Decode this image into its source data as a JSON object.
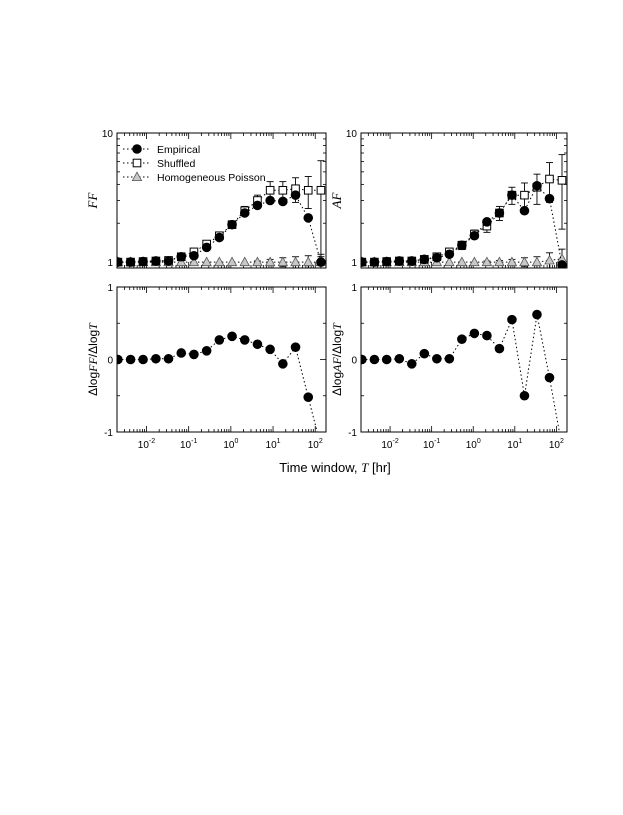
{
  "figure": {
    "xlabel_prefix": "Time window, ",
    "xlabel_var": "T",
    "xlabel_unit": " [hr]"
  },
  "colors": {
    "empirical": "#000000",
    "shuffled": "#ffffff",
    "poisson": "#c8c8c8",
    "axis": "#000000"
  },
  "chart_data": [
    {
      "id": "ff",
      "type": "scatter",
      "xscale": "log",
      "yscale": "log",
      "ylabel": "FF",
      "xlim": [
        0.002,
        180
      ],
      "ylim": [
        0.9,
        10
      ],
      "yticks": [
        {
          "v": 1,
          "label": "1"
        },
        {
          "v": 10,
          "label": "10"
        }
      ],
      "xticks": [],
      "legend": {
        "placement": "top-left",
        "entries": [
          "Empirical",
          "Shuffled",
          "Homogeneous Poisson"
        ]
      },
      "series": [
        {
          "name": "Empirical",
          "marker": "circle-filled",
          "x": [
            0.0021,
            0.0042,
            0.0083,
            0.0167,
            0.0333,
            0.0667,
            0.1333,
            0.2667,
            0.5333,
            1.0667,
            2.133,
            4.267,
            8.533,
            17.07,
            34.13,
            68.27,
            136.5
          ],
          "y": [
            1.0,
            1.0,
            1.01,
            1.02,
            1.02,
            1.1,
            1.12,
            1.3,
            1.55,
            1.95,
            2.4,
            2.75,
            3.0,
            2.95,
            3.3,
            2.2,
            1.0
          ]
        },
        {
          "name": "Shuffled",
          "marker": "square-open",
          "x": [
            0.0021,
            0.0042,
            0.0083,
            0.0167,
            0.0333,
            0.0667,
            0.1333,
            0.2667,
            0.5333,
            1.0667,
            2.133,
            4.267,
            8.533,
            17.07,
            34.13,
            68.27,
            136.5
          ],
          "y": [
            1.0,
            1.0,
            1.01,
            1.02,
            1.03,
            1.1,
            1.2,
            1.38,
            1.6,
            1.95,
            2.5,
            3.0,
            3.6,
            3.6,
            3.7,
            3.6,
            3.6
          ],
          "err": [
            0,
            0,
            0,
            0.02,
            0.02,
            0.03,
            0.05,
            0.08,
            0.1,
            0.1,
            0.2,
            0.3,
            0.6,
            0.6,
            0.8,
            1.0,
            2.5
          ]
        },
        {
          "name": "Homogeneous Poisson",
          "marker": "triangle-gray",
          "x": [
            0.0021,
            0.0042,
            0.0083,
            0.0167,
            0.0333,
            0.0667,
            0.1333,
            0.2667,
            0.5333,
            1.0667,
            2.133,
            4.267,
            8.533,
            17.07,
            34.13,
            68.27,
            136.5
          ],
          "y": [
            1.0,
            1.0,
            1.0,
            1.0,
            1.0,
            1.0,
            1.0,
            1.0,
            1.0,
            1.0,
            1.0,
            1.0,
            1.0,
            1.0,
            1.0,
            1.0,
            1.0
          ],
          "err": [
            0,
            0,
            0,
            0,
            0,
            0,
            0,
            0,
            0,
            0,
            0,
            0.02,
            0.05,
            0.08,
            0.1,
            0.12,
            0.15
          ]
        }
      ]
    },
    {
      "id": "af",
      "type": "scatter",
      "xscale": "log",
      "yscale": "log",
      "ylabel": "AF",
      "xlim": [
        0.002,
        180
      ],
      "ylim": [
        0.9,
        10
      ],
      "yticks": [
        {
          "v": 1,
          "label": "1"
        },
        {
          "v": 10,
          "label": "10"
        }
      ],
      "xticks": [],
      "series": [
        {
          "name": "Empirical",
          "marker": "circle-filled",
          "x": [
            0.0021,
            0.0042,
            0.0083,
            0.0167,
            0.0333,
            0.0667,
            0.1333,
            0.2667,
            0.5333,
            1.0667,
            2.133,
            4.267,
            8.533,
            17.07,
            34.13,
            68.27,
            136.5
          ],
          "y": [
            1.0,
            1.0,
            1.01,
            1.02,
            1.02,
            1.05,
            1.08,
            1.15,
            1.35,
            1.6,
            2.05,
            2.4,
            3.3,
            2.5,
            3.9,
            3.1,
            0.95
          ]
        },
        {
          "name": "Shuffled",
          "marker": "square-open",
          "x": [
            0.0021,
            0.0042,
            0.0083,
            0.0167,
            0.0333,
            0.0667,
            0.1333,
            0.2667,
            0.5333,
            1.0667,
            2.133,
            4.267,
            8.533,
            17.07,
            34.13,
            68.27,
            136.5
          ],
          "y": [
            1.0,
            1.0,
            1.01,
            1.02,
            1.02,
            1.05,
            1.1,
            1.2,
            1.35,
            1.65,
            1.9,
            2.4,
            3.3,
            3.3,
            3.8,
            4.4,
            4.3
          ],
          "err": [
            0,
            0,
            0,
            0.02,
            0.02,
            0.03,
            0.05,
            0.07,
            0.1,
            0.12,
            0.2,
            0.3,
            0.5,
            0.8,
            1.0,
            1.5,
            2.5
          ]
        },
        {
          "name": "Homogeneous Poisson",
          "marker": "triangle-gray",
          "x": [
            0.0021,
            0.0042,
            0.0083,
            0.0167,
            0.0333,
            0.0667,
            0.1333,
            0.2667,
            0.5333,
            1.0667,
            2.133,
            4.267,
            8.533,
            17.07,
            34.13,
            68.27,
            136.5
          ],
          "y": [
            1.0,
            1.0,
            1.0,
            1.0,
            1.0,
            1.0,
            1.0,
            1.0,
            1.0,
            1.0,
            1.0,
            1.0,
            1.0,
            1.0,
            1.0,
            1.03,
            1.06
          ],
          "err": [
            0,
            0,
            0,
            0,
            0,
            0,
            0,
            0,
            0,
            0,
            0.02,
            0.03,
            0.05,
            0.08,
            0.1,
            0.15,
            0.2
          ]
        }
      ]
    },
    {
      "id": "dff",
      "type": "line",
      "xscale": "log",
      "yscale": "linear",
      "ylabel_parts": [
        {
          "t": "Δlog",
          "s": "n"
        },
        {
          "t": "FF",
          "s": "i"
        },
        {
          "t": "/Δlog",
          "s": "n"
        },
        {
          "t": "T",
          "s": "i"
        }
      ],
      "xlim": [
        0.002,
        180
      ],
      "ylim": [
        -1,
        1
      ],
      "yticks": [
        {
          "v": -1,
          "label": "-1"
        },
        {
          "v": 0,
          "label": "0"
        },
        {
          "v": 1,
          "label": "1"
        }
      ],
      "xticks": [
        {
          "v": 0.01,
          "base": "10",
          "exp": "-2"
        },
        {
          "v": 0.1,
          "base": "10",
          "exp": "-1"
        },
        {
          "v": 1,
          "base": "10",
          "exp": "0"
        },
        {
          "v": 10,
          "base": "10",
          "exp": "1"
        },
        {
          "v": 100,
          "base": "10",
          "exp": "2"
        }
      ],
      "series": [
        {
          "name": "Empirical",
          "marker": "circle-filled",
          "x": [
            0.0021,
            0.0042,
            0.0083,
            0.0167,
            0.0333,
            0.0667,
            0.1333,
            0.2667,
            0.5333,
            1.0667,
            2.133,
            4.267,
            8.533,
            17.07,
            34.13,
            68.27,
            136.5
          ],
          "y": [
            0.0,
            0.0,
            0.0,
            0.01,
            0.01,
            0.09,
            0.07,
            0.12,
            0.27,
            0.32,
            0.27,
            0.21,
            0.14,
            -0.06,
            0.17,
            -0.52,
            -1.2
          ]
        }
      ]
    },
    {
      "id": "daf",
      "type": "line",
      "xscale": "log",
      "yscale": "linear",
      "ylabel_parts": [
        {
          "t": "Δlog",
          "s": "n"
        },
        {
          "t": "AF",
          "s": "i"
        },
        {
          "t": "/Δlog",
          "s": "n"
        },
        {
          "t": "T",
          "s": "i"
        }
      ],
      "xlim": [
        0.002,
        180
      ],
      "ylim": [
        -1,
        1
      ],
      "yticks": [
        {
          "v": -1,
          "label": "-1"
        },
        {
          "v": 0,
          "label": "0"
        },
        {
          "v": 1,
          "label": "1"
        }
      ],
      "xticks": [
        {
          "v": 0.01,
          "base": "10",
          "exp": "-2"
        },
        {
          "v": 0.1,
          "base": "10",
          "exp": "-1"
        },
        {
          "v": 1,
          "base": "10",
          "exp": "0"
        },
        {
          "v": 10,
          "base": "10",
          "exp": "1"
        },
        {
          "v": 100,
          "base": "10",
          "exp": "2"
        }
      ],
      "series": [
        {
          "name": "Empirical",
          "marker": "circle-filled",
          "x": [
            0.0021,
            0.0042,
            0.0083,
            0.0167,
            0.0333,
            0.0667,
            0.1333,
            0.2667,
            0.5333,
            1.0667,
            2.133,
            4.267,
            8.533,
            17.07,
            34.13,
            68.27,
            136.5
          ],
          "y": [
            0.0,
            0.0,
            0.0,
            0.01,
            -0.06,
            0.08,
            0.01,
            0.01,
            0.28,
            0.36,
            0.33,
            0.15,
            0.55,
            -0.5,
            0.62,
            -0.25,
            -1.2
          ]
        }
      ]
    }
  ]
}
